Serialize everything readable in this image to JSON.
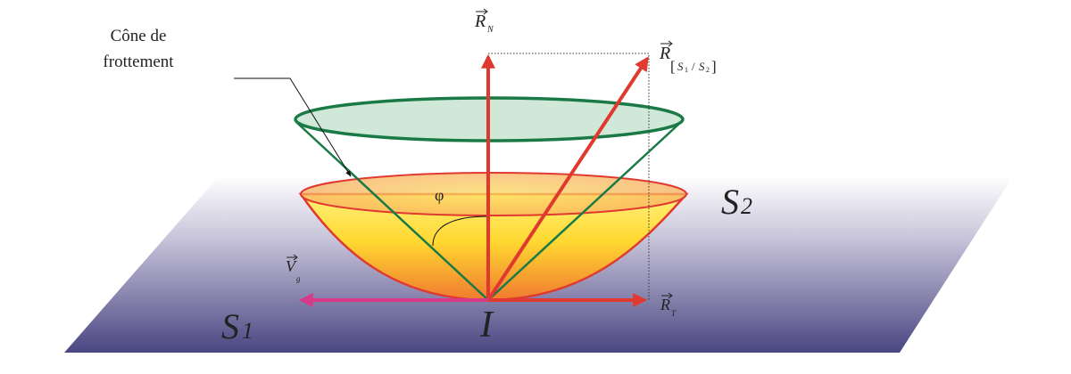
{
  "labels": {
    "cone_line1": "Cône de",
    "cone_line2": "frottement",
    "normal_force": "R",
    "normal_sub": "N",
    "resultant": "R",
    "resultant_sub_open": "[",
    "resultant_sub_s1": "S",
    "resultant_sub_1": "1",
    "resultant_sub_slash": "/",
    "resultant_sub_s2": "S",
    "resultant_sub_2": "2",
    "resultant_sub_close": "]",
    "tangential_force": "R",
    "tangential_sub": "T",
    "velocity": "V",
    "velocity_sub": "g",
    "angle": "φ",
    "solid_2": "S",
    "solid_2_sub": "2",
    "solid_1": "S",
    "solid_1_sub": "1",
    "contact_point": "I"
  },
  "colors": {
    "force_arrow": "#e03a30",
    "velocity_arrow": "#d83a8a",
    "cone_green": "#1a7a45",
    "cone_fill": "#cfe8d8",
    "plane_top": "#ffffff",
    "plane_bottom": "#4a4682",
    "bowl_top": "#ffe040",
    "bowl_bottom": "#f07a30"
  }
}
